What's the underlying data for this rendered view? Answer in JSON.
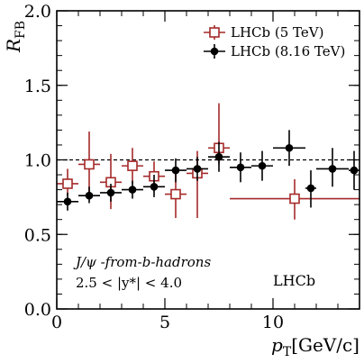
{
  "chart_data": {
    "type": "scatter",
    "xlabel_main": "p",
    "xlabel_sub": "T",
    "xlabel_unit": "[GeV/c]",
    "ylabel_main": "R",
    "ylabel_sub": "FB",
    "xlim": [
      0,
      14
    ],
    "ylim": [
      0.0,
      2.0
    ],
    "x_ticks": [
      0,
      5,
      10
    ],
    "y_ticks": [
      "0.0",
      "0.5",
      "1.0",
      "1.5",
      "2.0"
    ],
    "reference_line": 1.0,
    "experiment_label": "LHCb",
    "annotation_process": "J/ψ -from-b-hadrons",
    "annotation_cut": "2.5 < |y*| < 4.0",
    "legend_position": "top-right",
    "series": [
      {
        "name": "LHCb (5 TeV)",
        "marker": "open-square",
        "color": "#a52a2a",
        "points": [
          {
            "x": 0.5,
            "xlo": 0,
            "xhi": 1,
            "y": 0.84,
            "ylo": 0.76,
            "yhi": 0.94
          },
          {
            "x": 1.5,
            "xlo": 1,
            "xhi": 2,
            "y": 0.97,
            "ylo": 0.75,
            "yhi": 1.19
          },
          {
            "x": 2.5,
            "xlo": 2,
            "xhi": 3,
            "y": 0.85,
            "ylo": 0.67,
            "yhi": 1.04
          },
          {
            "x": 3.5,
            "xlo": 3,
            "xhi": 4,
            "y": 0.96,
            "ylo": 0.84,
            "yhi": 1.08
          },
          {
            "x": 4.5,
            "xlo": 4,
            "xhi": 5,
            "y": 0.89,
            "ylo": 0.79,
            "yhi": 0.99
          },
          {
            "x": 5.5,
            "xlo": 5,
            "xhi": 6,
            "y": 0.77,
            "ylo": 0.61,
            "yhi": 0.92
          },
          {
            "x": 6.5,
            "xlo": 6,
            "xhi": 7,
            "y": 0.91,
            "ylo": 0.61,
            "yhi": 1.06
          },
          {
            "x": 7.5,
            "xlo": 7,
            "xhi": 8,
            "y": 1.08,
            "ylo": 0.97,
            "yhi": 1.38
          },
          {
            "x": 11.0,
            "xlo": 8,
            "xhi": 14,
            "y": 0.74,
            "ylo": 0.6,
            "yhi": 0.87
          }
        ]
      },
      {
        "name": "LHCb (8.16 TeV)",
        "marker": "filled-circle",
        "color": "#000000",
        "points": [
          {
            "x": 0.5,
            "xlo": 0,
            "xhi": 1,
            "y": 0.72,
            "ylo": 0.66,
            "yhi": 0.78
          },
          {
            "x": 1.5,
            "xlo": 1,
            "xhi": 2,
            "y": 0.76,
            "ylo": 0.71,
            "yhi": 0.82
          },
          {
            "x": 2.5,
            "xlo": 2,
            "xhi": 3,
            "y": 0.78,
            "ylo": 0.72,
            "yhi": 0.84
          },
          {
            "x": 3.5,
            "xlo": 3,
            "xhi": 4,
            "y": 0.8,
            "ylo": 0.74,
            "yhi": 0.86
          },
          {
            "x": 4.5,
            "xlo": 4,
            "xhi": 5,
            "y": 0.82,
            "ylo": 0.75,
            "yhi": 0.9
          },
          {
            "x": 5.5,
            "xlo": 5,
            "xhi": 6,
            "y": 0.93,
            "ylo": 0.85,
            "yhi": 1.01
          },
          {
            "x": 6.5,
            "xlo": 6,
            "xhi": 7,
            "y": 0.94,
            "ylo": 0.86,
            "yhi": 1.02
          },
          {
            "x": 7.5,
            "xlo": 7,
            "xhi": 8,
            "y": 1.02,
            "ylo": 0.92,
            "yhi": 1.12
          },
          {
            "x": 8.5,
            "xlo": 8,
            "xhi": 9,
            "y": 0.95,
            "ylo": 0.85,
            "yhi": 1.05
          },
          {
            "x": 9.5,
            "xlo": 9,
            "xhi": 10,
            "y": 0.96,
            "ylo": 0.86,
            "yhi": 1.06
          },
          {
            "x": 10.75,
            "xlo": 10,
            "xhi": 11.5,
            "y": 1.08,
            "ylo": 0.96,
            "yhi": 1.2
          },
          {
            "x": 11.75,
            "xlo": 11.5,
            "xhi": 12,
            "y": 0.81,
            "ylo": 0.68,
            "yhi": 0.93
          },
          {
            "x": 12.75,
            "xlo": 12,
            "xhi": 13.5,
            "y": 0.94,
            "ylo": 0.82,
            "yhi": 1.08
          },
          {
            "x": 13.75,
            "xlo": 13.5,
            "xhi": 14,
            "y": 0.93,
            "ylo": 0.8,
            "yhi": 1.06
          }
        ]
      }
    ]
  }
}
